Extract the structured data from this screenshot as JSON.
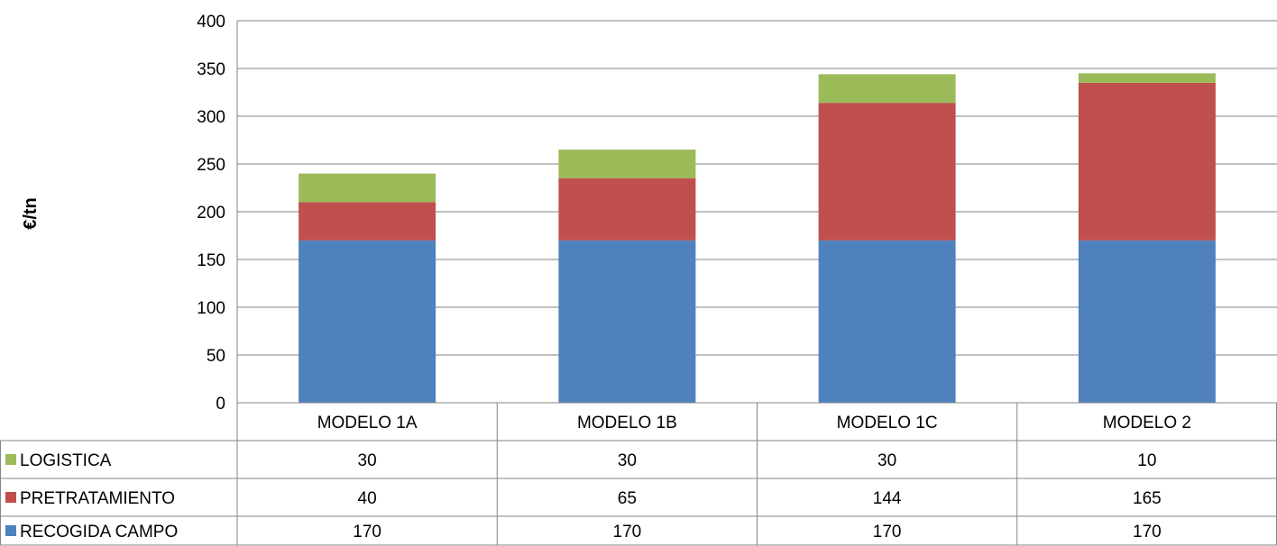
{
  "chart_data": {
    "type": "bar",
    "stacked": true,
    "ylabel": "€/tn",
    "categories": [
      "MODELO 1A",
      "MODELO 1B",
      "MODELO 1C",
      "MODELO 2"
    ],
    "ylim": [
      0,
      400
    ],
    "yticks": [
      "0",
      "50",
      "100",
      "150",
      "200",
      "250",
      "300",
      "350",
      "400"
    ],
    "grid": true,
    "legend_placement": "data-table-rows",
    "series": [
      {
        "name": "RECOGIDA CAMPO",
        "values": [
          170,
          170,
          170,
          170
        ],
        "color": "#4F81BD"
      },
      {
        "name": "PRETRATAMIENTO",
        "values": [
          40,
          65,
          144,
          165
        ],
        "color": "#C0504D"
      },
      {
        "name": "LOGISTICA",
        "values": [
          30,
          30,
          30,
          10
        ],
        "color": "#9BBB59"
      }
    ]
  }
}
